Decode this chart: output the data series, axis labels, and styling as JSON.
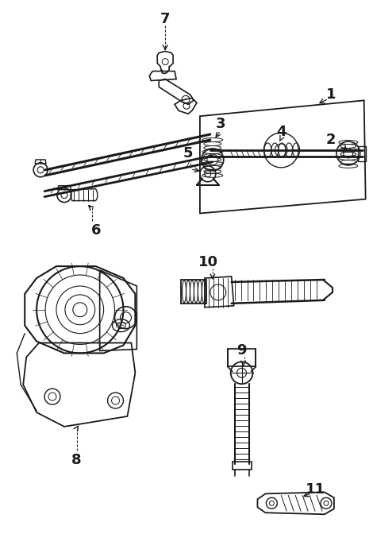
{
  "bg_color": "#ffffff",
  "line_color": "#1a1a1a",
  "fig_width": 4.7,
  "fig_height": 7.01,
  "dpi": 100
}
